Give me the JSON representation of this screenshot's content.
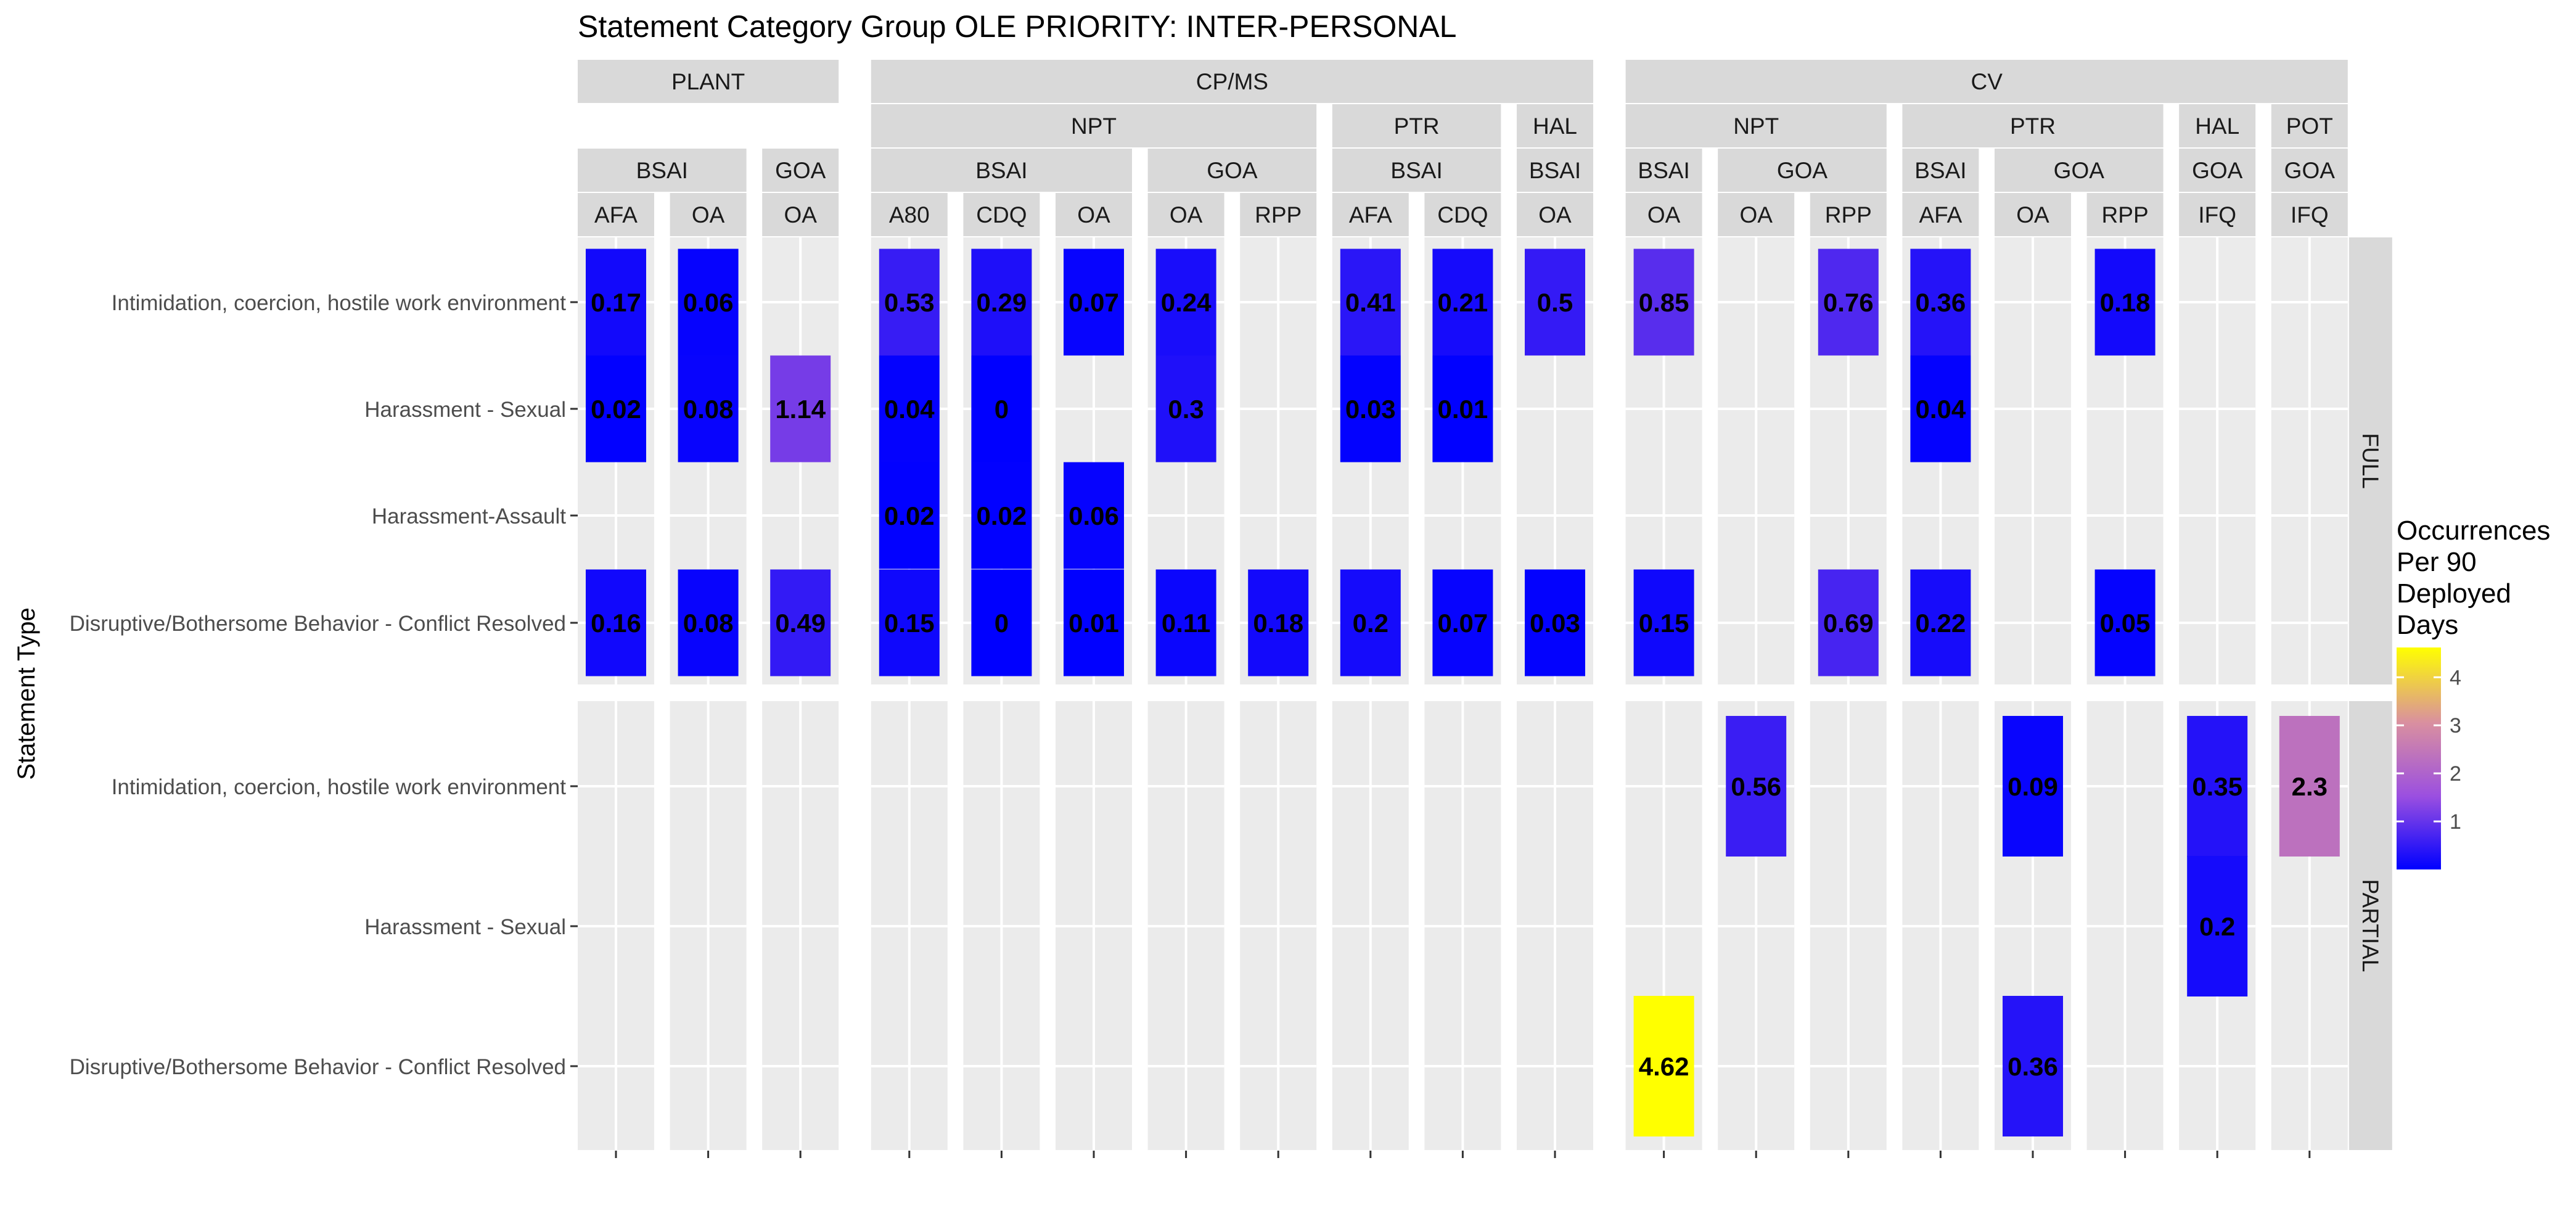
{
  "chart_data": {
    "type": "heatmap",
    "title": "Statement Category Group OLE PRIORITY: INTER-PERSONAL",
    "ylabel": "Statement Type",
    "legend": {
      "title": [
        "Occurrences",
        "Per 90",
        "Deployed",
        "Days"
      ],
      "ticks": [
        1,
        2,
        3,
        4
      ],
      "range": [
        0,
        4.62
      ],
      "colors": [
        "#0000ff",
        "#9b4fe0",
        "#d98fa0",
        "#ffff00"
      ],
      "placement": "right"
    },
    "groups": [
      {
        "label": "PLANT",
        "start": 0,
        "end": 2
      },
      {
        "label": "CP/MS",
        "start": 3,
        "end": 10
      },
      {
        "label": "CV",
        "start": 11,
        "end": 18
      }
    ],
    "gear_groups": [
      {
        "label": "NPT",
        "start": 3,
        "end": 7
      },
      {
        "label": "PTR",
        "start": 8,
        "end": 9
      },
      {
        "label": "HAL",
        "start": 10,
        "end": 10
      },
      {
        "label": "NPT",
        "start": 11,
        "end": 13
      },
      {
        "label": "PTR",
        "start": 14,
        "end": 16
      },
      {
        "label": "HAL",
        "start": 17,
        "end": 17
      },
      {
        "label": "POT",
        "start": 18,
        "end": 18
      }
    ],
    "region_groups": [
      {
        "label": "BSAI",
        "start": 0,
        "end": 1
      },
      {
        "label": "GOA",
        "start": 2,
        "end": 2
      },
      {
        "label": "BSAI",
        "start": 3,
        "end": 5
      },
      {
        "label": "GOA",
        "start": 6,
        "end": 7
      },
      {
        "label": "BSAI",
        "start": 8,
        "end": 9
      },
      {
        "label": "BSAI",
        "start": 10,
        "end": 10
      },
      {
        "label": "BSAI",
        "start": 11,
        "end": 11
      },
      {
        "label": "GOA",
        "start": 12,
        "end": 13
      },
      {
        "label": "BSAI",
        "start": 14,
        "end": 14
      },
      {
        "label": "GOA",
        "start": 15,
        "end": 16
      },
      {
        "label": "GOA",
        "start": 17,
        "end": 17
      },
      {
        "label": "GOA",
        "start": 18,
        "end": 18
      }
    ],
    "columns": [
      "AFA",
      "OA",
      "OA",
      "A80",
      "CDQ",
      "OA",
      "OA",
      "RPP",
      "AFA",
      "CDQ",
      "OA",
      "OA",
      "OA",
      "RPP",
      "AFA",
      "OA",
      "RPP",
      "IFQ",
      "IFQ"
    ],
    "panels": [
      {
        "label": "FULL",
        "rows": [
          "Intimidation, coercion, hostile work environment",
          "Harassment - Sexual",
          "Harassment-Assault",
          "Disruptive/Bothersome Behavior - Conflict Resolved"
        ],
        "cells": [
          {
            "row": 0,
            "col": 0,
            "value": 0.17,
            "label": "0.17"
          },
          {
            "row": 0,
            "col": 1,
            "value": 0.06,
            "label": "0.06"
          },
          {
            "row": 0,
            "col": 3,
            "value": 0.53,
            "label": "0.53"
          },
          {
            "row": 0,
            "col": 4,
            "value": 0.29,
            "label": "0.29"
          },
          {
            "row": 0,
            "col": 5,
            "value": 0.07,
            "label": "0.07"
          },
          {
            "row": 0,
            "col": 6,
            "value": 0.24,
            "label": "0.24"
          },
          {
            "row": 0,
            "col": 8,
            "value": 0.41,
            "label": "0.41"
          },
          {
            "row": 0,
            "col": 9,
            "value": 0.21,
            "label": "0.21"
          },
          {
            "row": 0,
            "col": 10,
            "value": 0.5,
            "label": "0.5"
          },
          {
            "row": 0,
            "col": 11,
            "value": 0.85,
            "label": "0.85"
          },
          {
            "row": 0,
            "col": 13,
            "value": 0.76,
            "label": "0.76"
          },
          {
            "row": 0,
            "col": 14,
            "value": 0.36,
            "label": "0.36"
          },
          {
            "row": 0,
            "col": 16,
            "value": 0.18,
            "label": "0.18"
          },
          {
            "row": 1,
            "col": 0,
            "value": 0.02,
            "label": "0.02"
          },
          {
            "row": 1,
            "col": 1,
            "value": 0.08,
            "label": "0.08"
          },
          {
            "row": 1,
            "col": 2,
            "value": 1.14,
            "label": "1.14"
          },
          {
            "row": 1,
            "col": 3,
            "value": 0.04,
            "label": "0.04"
          },
          {
            "row": 1,
            "col": 4,
            "value": 0,
            "label": "0"
          },
          {
            "row": 1,
            "col": 6,
            "value": 0.3,
            "label": "0.3"
          },
          {
            "row": 1,
            "col": 8,
            "value": 0.03,
            "label": "0.03"
          },
          {
            "row": 1,
            "col": 9,
            "value": 0.01,
            "label": "0.01"
          },
          {
            "row": 1,
            "col": 14,
            "value": 0.04,
            "label": "0.04"
          },
          {
            "row": 2,
            "col": 3,
            "value": 0.02,
            "label": "0.02"
          },
          {
            "row": 2,
            "col": 4,
            "value": 0.02,
            "label": "0.02"
          },
          {
            "row": 2,
            "col": 5,
            "value": 0.06,
            "label": "0.06"
          },
          {
            "row": 3,
            "col": 0,
            "value": 0.16,
            "label": "0.16"
          },
          {
            "row": 3,
            "col": 1,
            "value": 0.08,
            "label": "0.08"
          },
          {
            "row": 3,
            "col": 2,
            "value": 0.49,
            "label": "0.49"
          },
          {
            "row": 3,
            "col": 3,
            "value": 0.15,
            "label": "0.15"
          },
          {
            "row": 3,
            "col": 4,
            "value": 0,
            "label": "0"
          },
          {
            "row": 3,
            "col": 5,
            "value": 0.01,
            "label": "0.01"
          },
          {
            "row": 3,
            "col": 6,
            "value": 0.11,
            "label": "0.11"
          },
          {
            "row": 3,
            "col": 7,
            "value": 0.18,
            "label": "0.18"
          },
          {
            "row": 3,
            "col": 8,
            "value": 0.2,
            "label": "0.2"
          },
          {
            "row": 3,
            "col": 9,
            "value": 0.07,
            "label": "0.07"
          },
          {
            "row": 3,
            "col": 10,
            "value": 0.03,
            "label": "0.03"
          },
          {
            "row": 3,
            "col": 11,
            "value": 0.15,
            "label": "0.15"
          },
          {
            "row": 3,
            "col": 13,
            "value": 0.69,
            "label": "0.69"
          },
          {
            "row": 3,
            "col": 14,
            "value": 0.22,
            "label": "0.22"
          },
          {
            "row": 3,
            "col": 16,
            "value": 0.05,
            "label": "0.05"
          }
        ]
      },
      {
        "label": "PARTIAL",
        "rows": [
          "Intimidation, coercion, hostile work environment",
          "Harassment - Sexual",
          "Disruptive/Bothersome Behavior - Conflict Resolved"
        ],
        "cells": [
          {
            "row": 0,
            "col": 12,
            "value": 0.56,
            "label": "0.56"
          },
          {
            "row": 0,
            "col": 15,
            "value": 0.09,
            "label": "0.09"
          },
          {
            "row": 0,
            "col": 17,
            "value": 0.35,
            "label": "0.35"
          },
          {
            "row": 0,
            "col": 18,
            "value": 2.3,
            "label": "2.3"
          },
          {
            "row": 1,
            "col": 17,
            "value": 0.2,
            "label": "0.2"
          },
          {
            "row": 2,
            "col": 11,
            "value": 4.62,
            "label": "4.62"
          },
          {
            "row": 2,
            "col": 15,
            "value": 0.36,
            "label": "0.36"
          }
        ]
      }
    ]
  }
}
